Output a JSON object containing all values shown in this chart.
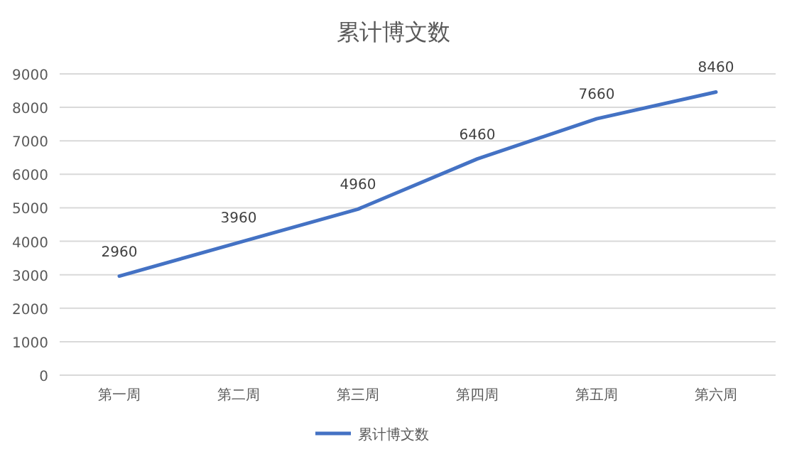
{
  "chart_data": {
    "type": "line",
    "title": "累计博文数",
    "categories": [
      "第一周",
      "第二周",
      "第三周",
      "第四周",
      "第五周",
      "第六周"
    ],
    "series": [
      {
        "name": "累计博文数",
        "color": "#4472c4",
        "values": [
          2960,
          3960,
          4960,
          6460,
          7660,
          8460
        ]
      }
    ],
    "ylim": [
      0,
      9000
    ],
    "yticks": [
      0,
      1000,
      2000,
      3000,
      4000,
      5000,
      6000,
      7000,
      8000,
      9000
    ],
    "grid": "y",
    "legend": "bottom",
    "data_labels": true,
    "marker": "none",
    "line_style": "solid"
  }
}
